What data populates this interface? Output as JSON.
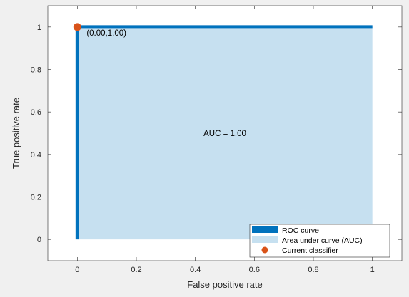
{
  "chart_data": {
    "type": "area",
    "xlabel": "False positive rate",
    "ylabel": "True positive rate",
    "xlim": [
      -0.1,
      1.1
    ],
    "ylim": [
      -0.1,
      1.1
    ],
    "xticks": [
      0,
      0.2,
      0.4,
      0.6,
      0.8,
      1
    ],
    "xtick_labels": [
      "0",
      "0.2",
      "0.4",
      "0.6",
      "0.8",
      "1"
    ],
    "yticks": [
      0,
      0.2,
      0.4,
      0.6,
      0.8,
      1
    ],
    "ytick_labels": [
      "0",
      "0.2",
      "0.4",
      "0.6",
      "0.8",
      "1"
    ],
    "grid": false,
    "legend_position": "bottom-right",
    "series": [
      {
        "name": "ROC curve",
        "type": "line",
        "x": [
          0,
          0,
          1
        ],
        "y": [
          0,
          1,
          1
        ],
        "color": "#0072bd"
      },
      {
        "name": "Area under curve (AUC)",
        "type": "area",
        "x": [
          0,
          0,
          1,
          1
        ],
        "y": [
          0,
          1,
          1,
          0
        ],
        "color": "#c6e0f0"
      },
      {
        "name": "Current classifier",
        "type": "scatter",
        "x": [
          0
        ],
        "y": [
          1
        ],
        "color": "#d95319"
      }
    ],
    "annotations": [
      {
        "text": "(0.00,1.00)",
        "x": 0,
        "y": 1
      },
      {
        "text": "AUC = 1.00",
        "x": 0.5,
        "y": 0.5
      }
    ]
  }
}
